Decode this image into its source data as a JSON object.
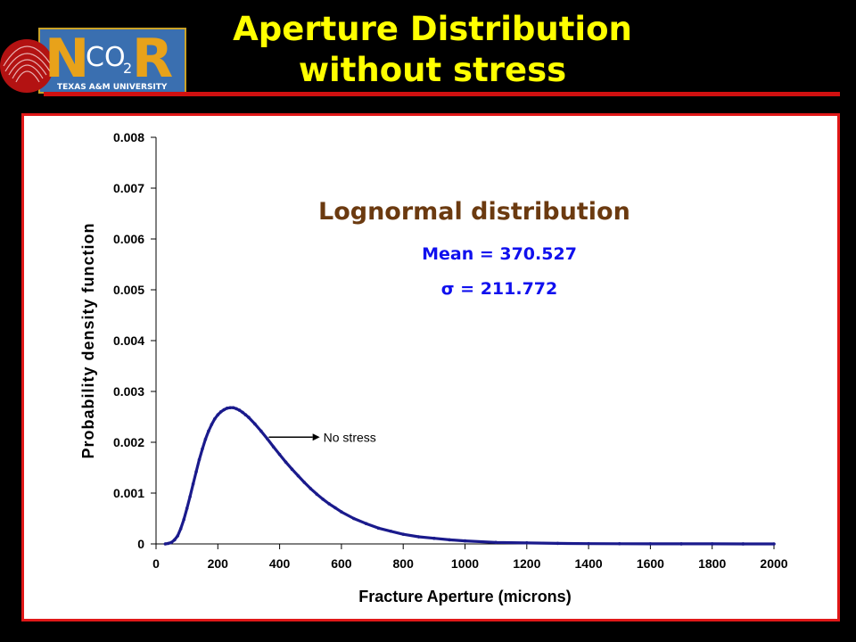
{
  "slide": {
    "title_line1": "Aperture Distribution",
    "title_line2": "without stress"
  },
  "logo": {
    "text_n": "N",
    "text_r": "R",
    "text_co": "CO",
    "text_sub": "2",
    "university": "TEXAS A&M UNIVERSITY"
  },
  "colors": {
    "background": "#000000",
    "title": "#ffff00",
    "accent_red": "#e01818",
    "series": "#1a1a8c",
    "dist_title": "#6b3a10",
    "stats": "#1010ee"
  },
  "annotation": {
    "dist_title": "Lognormal distribution",
    "mean": "Mean = 370.527",
    "sigma": "σ = 211.772"
  },
  "chart_data": {
    "type": "scatter",
    "xlabel": "Fracture Aperture (microns)",
    "ylabel": "Probability density function",
    "xlim": [
      0,
      2000
    ],
    "ylim": [
      0,
      0.008
    ],
    "x_ticks": [
      "0",
      "200",
      "400",
      "600",
      "800",
      "1000",
      "1200",
      "1400",
      "1600",
      "1800",
      "2000"
    ],
    "y_ticks": [
      "0",
      "0.001",
      "0.002",
      "0.003",
      "0.004",
      "0.005",
      "0.006",
      "0.007",
      "0.008"
    ],
    "grid": false,
    "legend": "none",
    "annotations": [
      {
        "text": "No stress",
        "x": 530,
        "y": 0.0021,
        "arrow_to_x": 365,
        "arrow_to_y": 0.0021
      }
    ],
    "series": [
      {
        "x": [
          30,
          40,
          50,
          60,
          70,
          80,
          90,
          100,
          110,
          120,
          130,
          140,
          150,
          160,
          170,
          180,
          190,
          200,
          210,
          220,
          230,
          240,
          250,
          260,
          270,
          280,
          290,
          300,
          320,
          340,
          360,
          380,
          400,
          420,
          440,
          460,
          480,
          500,
          520,
          540,
          560,
          580,
          600,
          640,
          680,
          720,
          760,
          800,
          850,
          900,
          950,
          1000,
          1100,
          1200,
          1300,
          1400,
          1500,
          1600,
          1700,
          1800,
          1900,
          2000
        ],
        "y": [
          0.0,
          1e-05,
          3e-05,
          8e-05,
          0.00016,
          0.0003,
          0.00048,
          0.0007,
          0.00093,
          0.00118,
          0.00142,
          0.00166,
          0.00187,
          0.00206,
          0.00222,
          0.00235,
          0.00246,
          0.00254,
          0.0026,
          0.00264,
          0.00267,
          0.00268,
          0.00268,
          0.00266,
          0.00263,
          0.00259,
          0.00254,
          0.00249,
          0.00236,
          0.00222,
          0.00207,
          0.00191,
          0.00176,
          0.00161,
          0.00147,
          0.00134,
          0.00121,
          0.00109,
          0.00098,
          0.00088,
          0.00079,
          0.00071,
          0.00063,
          0.0005,
          0.0004,
          0.00031,
          0.00025,
          0.00019,
          0.00014,
          0.00011,
          8e-05,
          6e-05,
          3e-05,
          2e-05,
          1e-05,
          6e-06,
          4e-06,
          2e-06,
          1e-06,
          1e-06,
          5e-07,
          0.0
        ]
      }
    ]
  }
}
